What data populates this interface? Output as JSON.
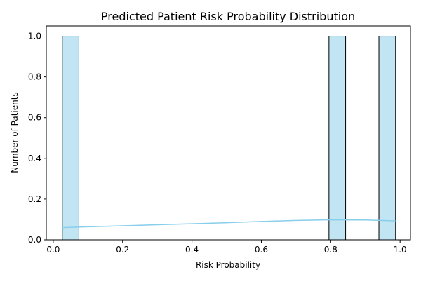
{
  "chart_data": {
    "type": "bar",
    "title": "Predicted Patient Risk Probability Distribution",
    "xlabel": "Risk Probability",
    "ylabel": "Number of Patients",
    "xlim": [
      -0.02,
      1.03
    ],
    "ylim": [
      0,
      1.05
    ],
    "x_ticks": [
      "0.0",
      "0.2",
      "0.4",
      "0.6",
      "0.8",
      "1.0"
    ],
    "x_tick_values": [
      0.0,
      0.2,
      0.4,
      0.6,
      0.8,
      1.0
    ],
    "y_ticks": [
      "0.0",
      "0.2",
      "0.4",
      "0.6",
      "0.8",
      "1.0"
    ],
    "y_tick_values": [
      0.0,
      0.2,
      0.4,
      0.6,
      0.8,
      1.0
    ],
    "bins": [
      {
        "x0": 0.026,
        "x1": 0.074,
        "count": 1
      },
      {
        "x0": 0.795,
        "x1": 0.843,
        "count": 1
      },
      {
        "x0": 0.939,
        "x1": 0.987,
        "count": 1
      }
    ],
    "kde": {
      "x": [
        0.026,
        0.1,
        0.2,
        0.3,
        0.4,
        0.5,
        0.6,
        0.7,
        0.8,
        0.9,
        0.987
      ],
      "y": [
        0.06,
        0.064,
        0.069,
        0.074,
        0.079,
        0.084,
        0.09,
        0.095,
        0.098,
        0.097,
        0.093
      ]
    },
    "grid": false,
    "colors": {
      "bar_fill": "#c2e5f4",
      "bar_edge": "#000000",
      "kde_line": "#87ceeb"
    }
  }
}
